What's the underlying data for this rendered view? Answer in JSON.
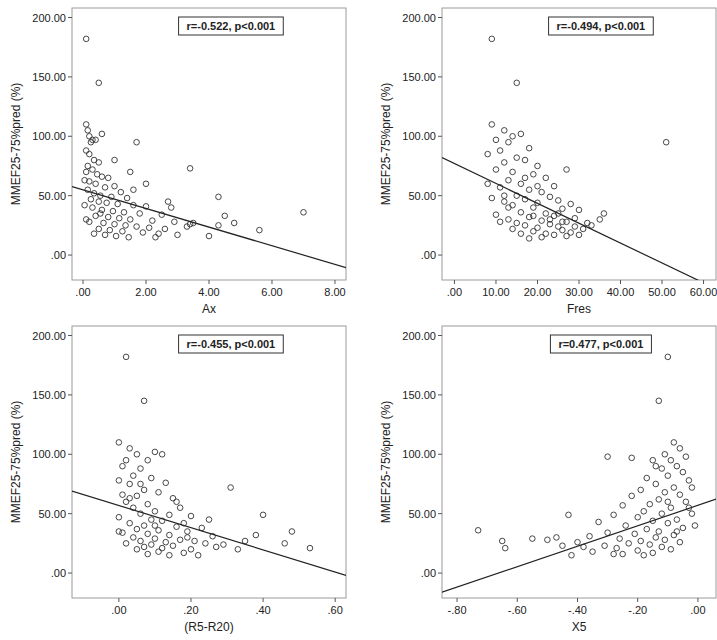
{
  "chart_data": [
    {
      "type": "scatter",
      "x_label": "Ax",
      "y_label": "MMEF25-75%pred (%)",
      "annotation": "r=-0.522, p<0.001",
      "color": "#333333",
      "marker": "circle",
      "grid": false,
      "xlim": [
        -0.35,
        8.35
      ],
      "ylim": [
        -21,
        208
      ],
      "xticks": [
        {
          "value": 0,
          "label": ".00"
        },
        {
          "value": 2,
          "label": "2.00"
        },
        {
          "value": 4,
          "label": "4.00"
        },
        {
          "value": 6,
          "label": "6.00"
        },
        {
          "value": 8,
          "label": "8.00"
        }
      ],
      "yticks": [
        {
          "value": 0,
          "label": ".00"
        },
        {
          "value": 50,
          "label": "50.00"
        },
        {
          "value": 100,
          "label": "100.00"
        },
        {
          "value": 150,
          "label": "150.00"
        },
        {
          "value": 200,
          "label": "200.00"
        }
      ],
      "x": [
        0.1,
        0.5,
        0.1,
        0.15,
        0.2,
        0.3,
        0.25,
        0.4,
        0.6,
        1.7,
        0.1,
        0.2,
        0.35,
        0.5,
        0.15,
        0.3,
        0.1,
        0.45,
        0.6,
        0.8,
        0.2,
        0.4,
        1.0,
        0.7,
        0.15,
        0.35,
        1.2,
        0.55,
        0.9,
        1.4,
        0.25,
        0.5,
        0.75,
        1.1,
        1.6,
        2.0,
        0.3,
        0.6,
        0.95,
        1.3,
        1.8,
        2.5,
        0.4,
        0.8,
        1.15,
        1.5,
        2.2,
        2.9,
        0.2,
        0.65,
        1.0,
        1.35,
        1.7,
        2.1,
        2.6,
        3.3,
        0.5,
        0.85,
        1.25,
        1.9,
        2.4,
        3.0,
        0.35,
        0.7,
        1.05,
        1.45,
        2.3,
        3.4,
        3.5,
        4.0,
        4.3,
        4.3,
        4.5,
        4.8,
        5.6,
        7.0,
        3.4,
        2.7,
        2.0,
        1.5,
        1.0,
        0.05,
        0.05,
        0.1,
        0.55,
        1.6,
        2.8
      ],
      "y": [
        182,
        145,
        110,
        105,
        100,
        97,
        95,
        97,
        102,
        95,
        88,
        85,
        80,
        78,
        75,
        72,
        70,
        68,
        66,
        65,
        62,
        60,
        58,
        57,
        55,
        52,
        53,
        50,
        49,
        48,
        47,
        45,
        44,
        43,
        42,
        41,
        40,
        38,
        37,
        36,
        35,
        34,
        33,
        32,
        31,
        30,
        29,
        28,
        28,
        27,
        26,
        25,
        24,
        23,
        22,
        24,
        22,
        21,
        20,
        19,
        18,
        17,
        18,
        17,
        16,
        15,
        15,
        26,
        27,
        16,
        25,
        49,
        33,
        27,
        21,
        36,
        73,
        45,
        60,
        70,
        80,
        63,
        42,
        30,
        35,
        55,
        40
      ],
      "fit_line": {
        "x": [
          -0.35,
          8.35
        ],
        "y": [
          57.7,
          -10.6
        ]
      }
    },
    {
      "type": "scatter",
      "x_label": "Fres",
      "y_label": "MMEF25-75%pred (%)",
      "annotation": "r=-0.494, p<0.001",
      "color": "#333333",
      "marker": "circle",
      "grid": false,
      "xlim": [
        -3,
        63
      ],
      "ylim": [
        -21,
        208
      ],
      "xticks": [
        {
          "value": 0,
          "label": ".00"
        },
        {
          "value": 10,
          "label": "10.00"
        },
        {
          "value": 20,
          "label": "20.00"
        },
        {
          "value": 30,
          "label": "30.00"
        },
        {
          "value": 40,
          "label": "40.00"
        },
        {
          "value": 50,
          "label": "50.00"
        },
        {
          "value": 60,
          "label": "60.00"
        }
      ],
      "yticks": [
        {
          "value": 0,
          "label": ".00"
        },
        {
          "value": 50,
          "label": "50.00"
        },
        {
          "value": 100,
          "label": "100.00"
        },
        {
          "value": 150,
          "label": "150.00"
        },
        {
          "value": 200,
          "label": "200.00"
        }
      ],
      "x": [
        9,
        15,
        51,
        9,
        12,
        14,
        10,
        16,
        13,
        18,
        11,
        8,
        15,
        17,
        12,
        20,
        10,
        14,
        19,
        22,
        13,
        16,
        24,
        11,
        18,
        21,
        27,
        15,
        23,
        9,
        17,
        25,
        12,
        20,
        28,
        14,
        19,
        26,
        30,
        16,
        22,
        10,
        24,
        18,
        29,
        13,
        21,
        27,
        15,
        23,
        32,
        17,
        25,
        20,
        31,
        14,
        26,
        19,
        28,
        22,
        16,
        24,
        33,
        35,
        11,
        30,
        21,
        18,
        27,
        13,
        20,
        8,
        25,
        17,
        23,
        29,
        36,
        19,
        12,
        26
      ],
      "y": [
        182,
        145,
        95,
        110,
        105,
        100,
        97,
        102,
        95,
        90,
        88,
        85,
        82,
        80,
        78,
        75,
        72,
        70,
        68,
        65,
        63,
        60,
        58,
        57,
        55,
        53,
        72,
        50,
        49,
        48,
        47,
        46,
        45,
        44,
        43,
        42,
        40,
        39,
        38,
        36,
        35,
        34,
        33,
        32,
        31,
        30,
        29,
        28,
        27,
        26,
        27,
        25,
        24,
        23,
        22,
        22,
        21,
        20,
        19,
        18,
        18,
        17,
        25,
        30,
        28,
        17,
        15,
        14,
        16,
        40,
        58,
        60,
        35,
        65,
        30,
        24,
        35,
        33,
        50,
        28
      ],
      "fit_line": {
        "x": [
          -3,
          63
        ],
        "y": [
          82,
          -28.4
        ]
      }
    },
    {
      "type": "scatter",
      "x_label": "(R5-R20)",
      "y_label": "MMEF25-75%pred (%)",
      "annotation": "r=-0.455, p<0.001",
      "color": "#333333",
      "marker": "circle",
      "grid": false,
      "xlim": [
        -0.13,
        0.63
      ],
      "ylim": [
        -21,
        208
      ],
      "xticks": [
        {
          "value": 0,
          "label": ".00"
        },
        {
          "value": 0.2,
          "label": ".20"
        },
        {
          "value": 0.4,
          "label": ".40"
        },
        {
          "value": 0.6,
          "label": ".60"
        }
      ],
      "yticks": [
        {
          "value": 0,
          "label": ".00"
        },
        {
          "value": 50,
          "label": "50.00"
        },
        {
          "value": 100,
          "label": "100.00"
        },
        {
          "value": 150,
          "label": "150.00"
        },
        {
          "value": 200,
          "label": "200.00"
        }
      ],
      "x": [
        0.02,
        0.07,
        0.0,
        0.03,
        0.1,
        0.05,
        0.08,
        0.12,
        0.02,
        0.01,
        0.06,
        0.04,
        0.09,
        0.0,
        0.13,
        0.03,
        0.07,
        0.11,
        0.01,
        0.05,
        0.15,
        0.02,
        0.08,
        0.17,
        0.04,
        0.1,
        0.06,
        0.14,
        0.2,
        0.31,
        0.0,
        0.09,
        0.12,
        0.18,
        0.03,
        0.07,
        0.16,
        0.23,
        0.05,
        0.11,
        0.19,
        0.01,
        0.08,
        0.14,
        0.26,
        0.04,
        0.1,
        0.17,
        0.21,
        0.06,
        0.13,
        0.24,
        0.02,
        0.09,
        0.15,
        0.29,
        0.07,
        0.12,
        0.2,
        0.05,
        0.11,
        0.18,
        0.08,
        0.14,
        0.22,
        0.33,
        0.35,
        0.38,
        0.4,
        0.46,
        0.48,
        0.53,
        0.25,
        0.03,
        0.06,
        0.16,
        0.19,
        0.27,
        0.0,
        0.1
      ],
      "y": [
        182,
        145,
        110,
        105,
        102,
        100,
        95,
        100,
        95,
        90,
        88,
        82,
        80,
        78,
        76,
        75,
        70,
        68,
        66,
        65,
        63,
        60,
        58,
        55,
        55,
        52,
        50,
        49,
        48,
        72,
        47,
        45,
        44,
        42,
        42,
        40,
        39,
        38,
        37,
        36,
        35,
        34,
        33,
        32,
        31,
        30,
        29,
        28,
        27,
        27,
        26,
        25,
        25,
        24,
        23,
        24,
        22,
        21,
        20,
        20,
        18,
        17,
        16,
        15,
        15,
        20,
        27,
        32,
        49,
        25,
        35,
        21,
        45,
        63,
        75,
        60,
        30,
        22,
        35,
        40
      ],
      "fit_line": {
        "x": [
          -0.13,
          0.63
        ],
        "y": [
          69,
          -1.9
        ]
      }
    },
    {
      "type": "scatter",
      "x_label": "X5",
      "y_label": "MMEF25-75%pred (%)",
      "annotation": "r=0.477, p<0.001",
      "color": "#333333",
      "marker": "circle",
      "grid": false,
      "xlim": [
        -0.85,
        0.06
      ],
      "ylim": [
        -21,
        208
      ],
      "xticks": [
        {
          "value": -0.8,
          "label": "-.80"
        },
        {
          "value": -0.6,
          "label": "-.60"
        },
        {
          "value": -0.4,
          "label": "-.40"
        },
        {
          "value": -0.2,
          "label": "-.20"
        },
        {
          "value": 0,
          "label": ".00"
        }
      ],
      "yticks": [
        {
          "value": 0,
          "label": ".00"
        },
        {
          "value": 50,
          "label": "50.00"
        },
        {
          "value": 100,
          "label": "100.00"
        },
        {
          "value": 150,
          "label": "150.00"
        },
        {
          "value": 200,
          "label": "200.00"
        }
      ],
      "x": [
        -0.1,
        -0.13,
        -0.73,
        -0.65,
        -0.64,
        -0.55,
        -0.3,
        -0.02,
        -0.08,
        -0.06,
        -0.11,
        -0.04,
        -0.09,
        -0.15,
        -0.07,
        -0.12,
        -0.05,
        -0.1,
        -0.17,
        -0.03,
        -0.14,
        -0.08,
        -0.19,
        -0.11,
        -0.06,
        -0.22,
        -0.13,
        -0.04,
        -0.16,
        -0.25,
        -0.09,
        -0.18,
        -0.02,
        -0.12,
        -0.28,
        -0.2,
        -0.07,
        -0.15,
        -0.33,
        -0.1,
        -0.24,
        -0.05,
        -0.17,
        -0.13,
        -0.3,
        -0.21,
        -0.08,
        -0.36,
        -0.14,
        -0.26,
        -0.11,
        -0.19,
        -0.4,
        -0.06,
        -0.23,
        -0.16,
        -0.31,
        -0.12,
        -0.43,
        -0.38,
        -0.27,
        -0.09,
        -0.2,
        -0.35,
        -0.15,
        -0.25,
        -0.42,
        -0.18,
        -0.47,
        -0.5,
        -0.22,
        -0.28,
        -0.45,
        -0.1,
        -0.03,
        -0.14,
        -0.07,
        -0.01
      ],
      "y": [
        182,
        145,
        36,
        27,
        21,
        29,
        98,
        72,
        110,
        105,
        100,
        98,
        95,
        95,
        90,
        88,
        85,
        82,
        80,
        78,
        75,
        72,
        70,
        68,
        66,
        65,
        62,
        60,
        58,
        57,
        55,
        52,
        50,
        50,
        49,
        47,
        45,
        44,
        43,
        42,
        40,
        38,
        37,
        35,
        34,
        33,
        32,
        31,
        30,
        29,
        28,
        27,
        26,
        26,
        25,
        24,
        23,
        22,
        49,
        22,
        21,
        20,
        19,
        18,
        17,
        16,
        15,
        15,
        30,
        28,
        97,
        16,
        23,
        60,
        55,
        90,
        35,
        40
      ],
      "fit_line": {
        "x": [
          -0.85,
          0.06
        ],
        "y": [
          -16.1,
          62.2
        ]
      }
    }
  ]
}
